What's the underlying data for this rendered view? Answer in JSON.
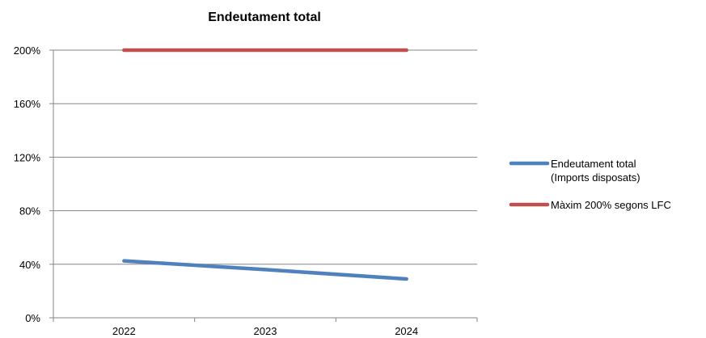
{
  "chart_data": {
    "type": "line",
    "title": "Endeutament total",
    "xlabel": "",
    "ylabel": "",
    "categories": [
      "2022",
      "2023",
      "2024"
    ],
    "y_ticks": [
      "0%",
      "40%",
      "80%",
      "120%",
      "160%",
      "200%"
    ],
    "ylim": [
      0,
      200
    ],
    "grid": true,
    "legend_position": "right",
    "series": [
      {
        "name_lines": [
          "Endeutament total",
          "(Imports disposats)"
        ],
        "values": [
          42.5,
          36,
          29
        ],
        "color": "#4f81bd"
      },
      {
        "name_lines": [
          "Màxim 200% segons LFC"
        ],
        "values": [
          200,
          200,
          200
        ],
        "color": "#c0504d"
      }
    ]
  }
}
